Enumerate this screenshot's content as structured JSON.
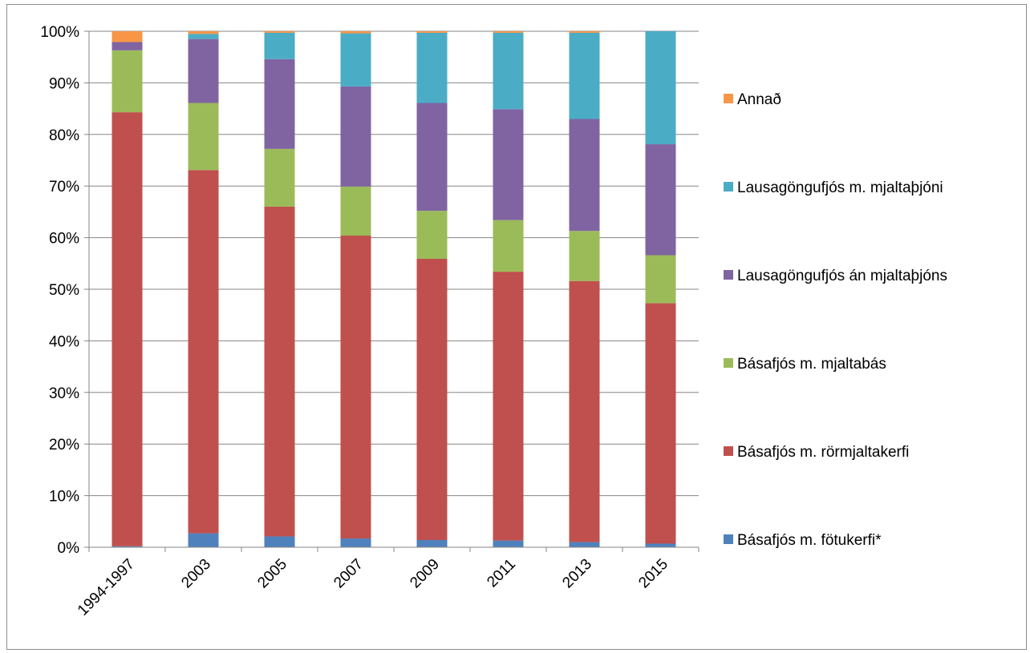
{
  "chart_data": {
    "type": "bar",
    "stacked": true,
    "normalized": true,
    "title": "",
    "xlabel": "",
    "ylabel": "",
    "ylim": [
      0,
      100
    ],
    "y_ticks": [
      "0%",
      "10%",
      "20%",
      "30%",
      "40%",
      "50%",
      "60%",
      "70%",
      "80%",
      "90%",
      "100%"
    ],
    "grid": "horizontal",
    "legend_position": "right",
    "categories": [
      "1994-1997",
      "2003",
      "2005",
      "2007",
      "2009",
      "2011",
      "2013",
      "2015"
    ],
    "series": [
      {
        "name": "Básafjós m. fötukerfi*",
        "color": "#4f81bd",
        "values": [
          0.2,
          2.7,
          2.1,
          1.7,
          1.4,
          1.3,
          1.0,
          0.7
        ]
      },
      {
        "name": "Básafjós m. rörmjaltakerfi",
        "color": "#c0504d",
        "values": [
          84.1,
          70.4,
          63.9,
          58.7,
          54.5,
          52.1,
          50.6,
          46.6
        ]
      },
      {
        "name": "Básafjós m. mjaltabás",
        "color": "#9bbb59",
        "values": [
          12.0,
          13.0,
          11.2,
          9.5,
          9.3,
          10.0,
          9.7,
          9.3
        ]
      },
      {
        "name": "Lausagöngufjós án mjaltaþjóns",
        "color": "#8064a2",
        "values": [
          1.6,
          12.4,
          17.4,
          19.4,
          20.9,
          21.5,
          21.7,
          21.5
        ]
      },
      {
        "name": "Lausagöngufjós m. mjaltaþjóni",
        "color": "#4bacc6",
        "values": [
          0.0,
          1.0,
          5.1,
          10.3,
          13.6,
          14.8,
          16.7,
          21.9
        ]
      },
      {
        "name": "Annað",
        "color": "#f79646",
        "values": [
          2.1,
          0.5,
          0.3,
          0.4,
          0.3,
          0.3,
          0.3,
          0.0
        ]
      }
    ]
  }
}
